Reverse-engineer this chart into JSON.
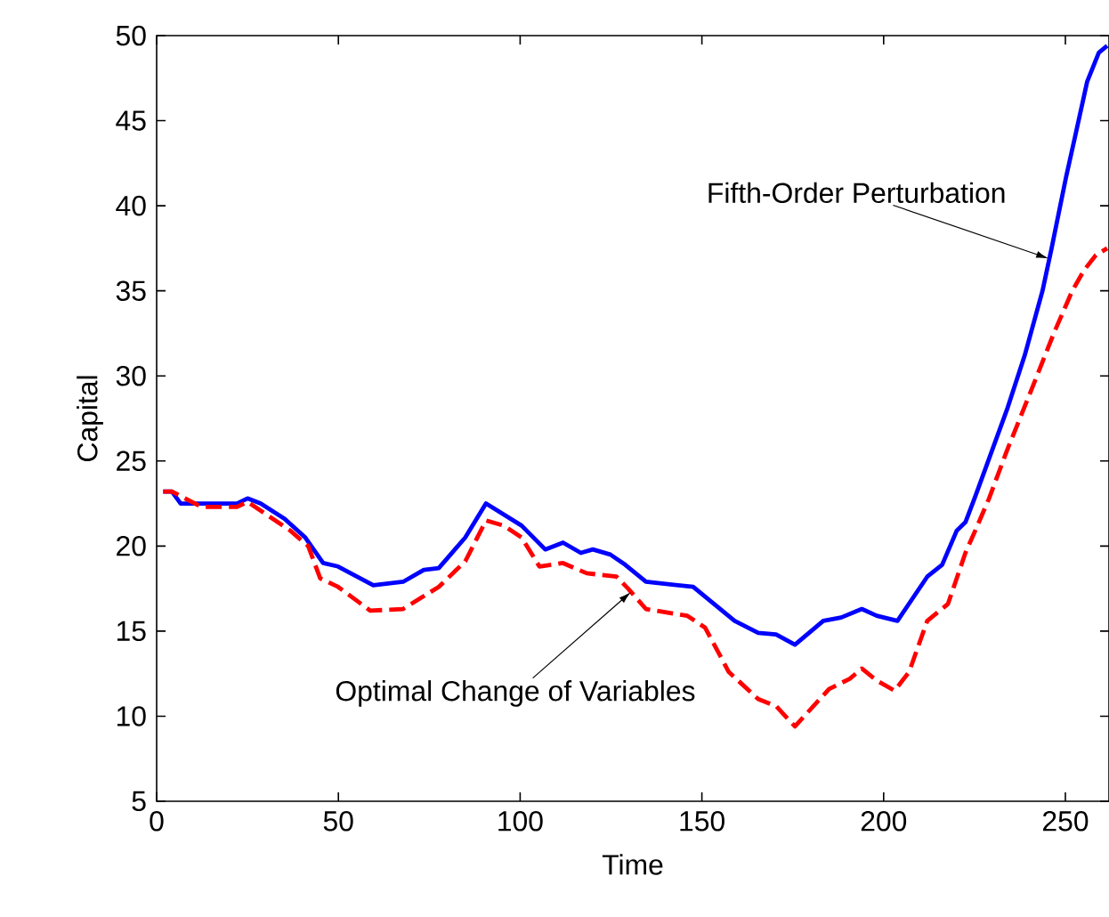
{
  "chart_data": {
    "type": "line",
    "xlabel": "Time",
    "ylabel": "Capital",
    "xlim": [
      0,
      262
    ],
    "ylim": [
      5,
      50
    ],
    "xticks": [
      0,
      50,
      100,
      150,
      200,
      250
    ],
    "yticks": [
      5,
      10,
      15,
      20,
      25,
      30,
      35,
      40,
      45,
      50
    ],
    "marker": "none",
    "series": [
      {
        "color": "#0000ff",
        "line_style": "solid",
        "x": [
          1.8,
          4.2,
          6.6,
          12.3,
          22.1,
          25,
          28.6,
          35.2,
          40.9,
          45.8,
          49.9,
          59.6,
          67.8,
          73.5,
          77.6,
          84.9,
          90.6,
          100.4,
          106.9,
          111.8,
          116.7,
          120,
          124.8,
          128.9,
          134.6,
          147.6,
          159,
          165.5,
          170.4,
          175.6,
          183.4,
          188.3,
          194,
          198.1,
          203.8,
          212,
          216.1,
          220.1,
          222.5,
          225,
          227.4,
          233.9,
          238.8,
          243.7,
          246.2,
          250.2,
          252.7,
          256,
          259.2,
          261.5
        ],
        "values": [
          23.2,
          23.2,
          22.5,
          22.5,
          22.5,
          22.8,
          22.5,
          21.6,
          20.5,
          19,
          18.8,
          17.7,
          17.9,
          18.6,
          18.7,
          20.5,
          22.5,
          21.2,
          19.8,
          20.2,
          19.6,
          19.8,
          19.5,
          18.9,
          17.9,
          17.6,
          15.6,
          14.9,
          14.8,
          14.2,
          15.6,
          15.8,
          16.3,
          15.9,
          15.6,
          18.2,
          18.9,
          20.9,
          21.4,
          22.8,
          24.2,
          28,
          31.2,
          35,
          37.5,
          41.7,
          44.1,
          47.3,
          49,
          49.4
        ]
      },
      {
        "color": "#ff0000",
        "line_style": "dashed",
        "x": [
          1.8,
          4.2,
          12.3,
          22.1,
          25,
          36.8,
          41.7,
          45,
          49.9,
          58.8,
          67.8,
          77.6,
          84.9,
          90.6,
          95.5,
          100.4,
          105.3,
          111.8,
          118.3,
          126.5,
          129.7,
          134.6,
          146,
          150.9,
          157.4,
          165.5,
          170.4,
          175.6,
          185,
          190.7,
          194,
          198.1,
          203,
          207,
          212,
          217.7,
          222.5,
          225.8,
          229,
          233.9,
          240.5,
          247,
          251.9,
          255.1,
          258.4,
          261.5
        ],
        "values": [
          23.2,
          23.2,
          22.3,
          22.3,
          22.6,
          20.9,
          20,
          18.1,
          17.6,
          16.2,
          16.3,
          17.6,
          19.1,
          21.5,
          21.2,
          20.5,
          18.8,
          19,
          18.4,
          18.2,
          17.5,
          16.3,
          15.9,
          15.2,
          12.6,
          11,
          10.6,
          9.4,
          11.6,
          12.2,
          12.8,
          12.1,
          11.5,
          12.6,
          15.6,
          16.6,
          19.6,
          21.2,
          22.8,
          25.6,
          29.1,
          32.6,
          35,
          36.2,
          37.1,
          37.5
        ]
      }
    ],
    "annotations": [
      {
        "text": "Fifth-Order Perturbation",
        "x": 245.4,
        "y": 36.9
      },
      {
        "text": "Optimal Change of Variables",
        "x": 130.5,
        "y": 17.3
      }
    ]
  }
}
